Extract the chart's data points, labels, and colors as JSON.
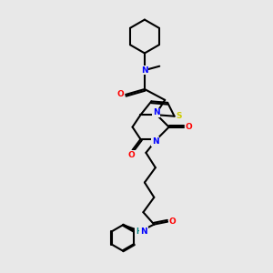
{
  "background_color": "#e8e8e8",
  "atom_colors": {
    "N": "#0000ff",
    "O": "#ff0000",
    "S": "#cccc00",
    "C": "#000000",
    "H": "#008080"
  },
  "bond_color": "#000000",
  "bond_width": 1.5
}
